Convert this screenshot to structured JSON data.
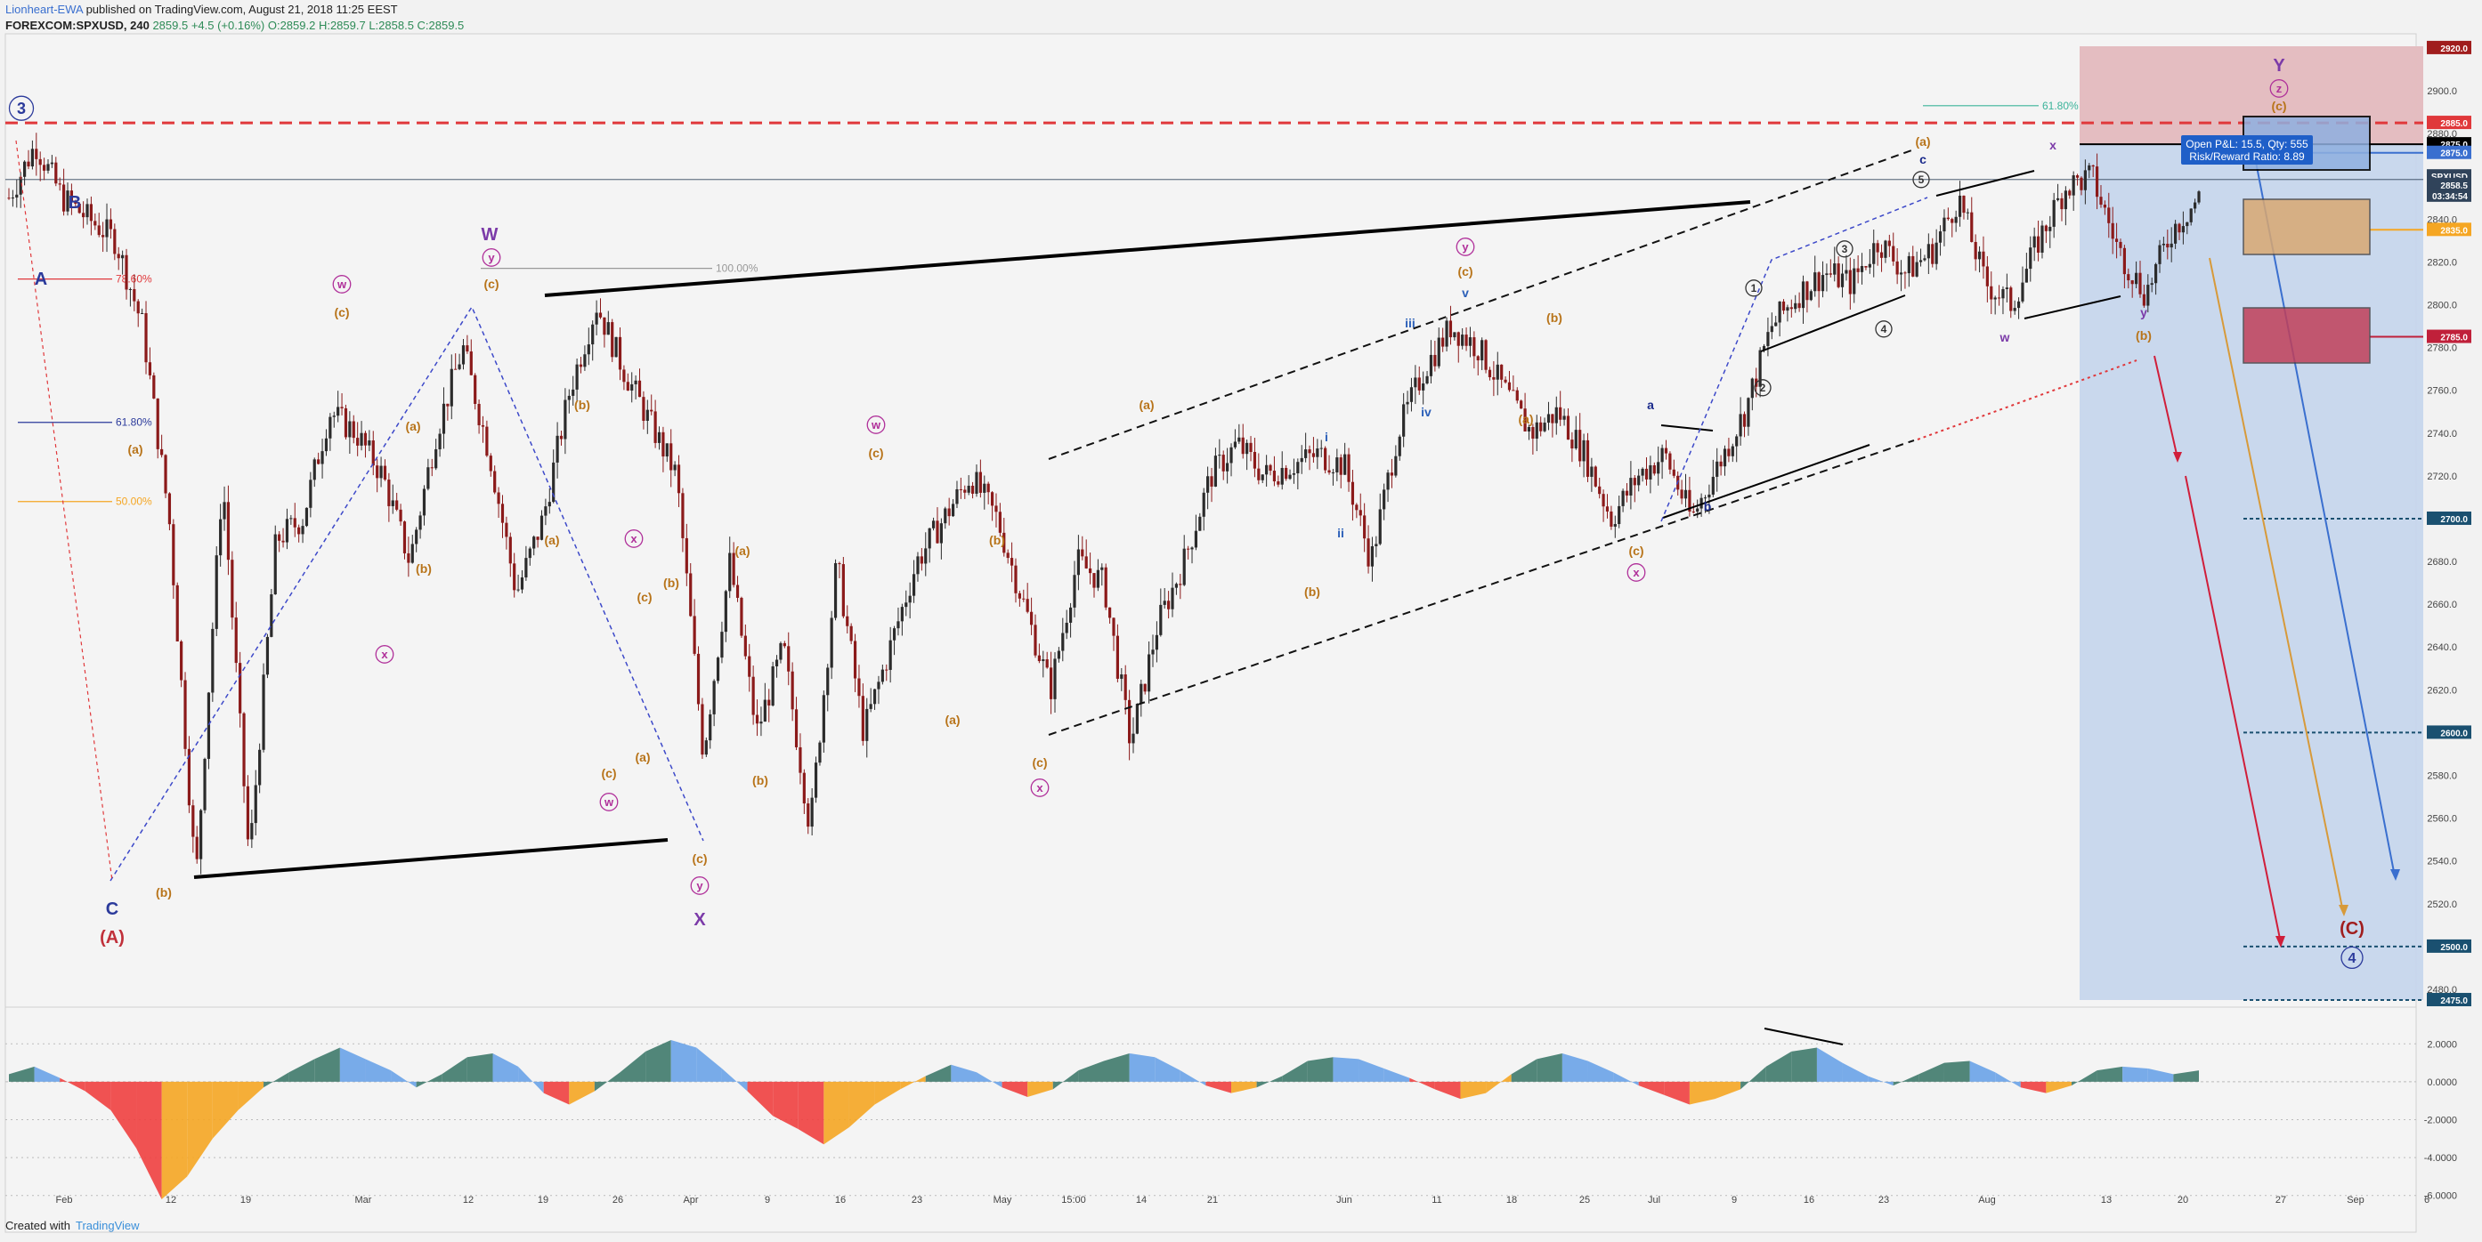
{
  "header": {
    "author": "Lionheart-EWA",
    "published": " published on TradingView.com, August 21, 2018 11:25 EEST",
    "symbol": "FOREXCOM:SPXUSD, 240",
    "change": "2859.5 +4.5 (+0.16%)",
    "ohlc": "O:2859.2 H:2859.7 L:2858.5 C:2859.5"
  },
  "footer": {
    "created": "Created with",
    "brand": "TradingView"
  },
  "colors": {
    "bull": "#2b2b2b",
    "bear": "#8b1a1a",
    "blue_wave": "#2b3a9b",
    "purple_wave": "#7b3aa8",
    "orange_wave": "#b8741a",
    "magenta_wave": "#b0309a",
    "red_level": "#e0383b",
    "target_box": "#c4d5ec",
    "osc_pos": "#3f7a6c",
    "osc_pos_light": "#6aa3e8",
    "osc_neg": "#f04040",
    "osc_neg_light": "#f5a623"
  },
  "chart_data": {
    "type": "candlestick",
    "title": "",
    "xlabel": "",
    "ylabel": "",
    "ylim": [
      2460,
      2940
    ],
    "x_ticks": [
      "Feb",
      "12",
      "19",
      "Mar",
      "12",
      "19",
      "26",
      "Apr",
      "9",
      "16",
      "23",
      "May",
      "15:00",
      "14",
      "21",
      "Jun",
      "11",
      "18",
      "25",
      "Jul",
      "9",
      "16",
      "23",
      "Aug",
      "13",
      "20",
      "27",
      "Sep",
      "6"
    ],
    "y_ticks": [
      "2900.0",
      "2880.0",
      "2860.0",
      "2840.0",
      "2820.0",
      "2800.0",
      "2780.0",
      "2760.0",
      "2740.0",
      "2720.0",
      "2700.0",
      "2680.0",
      "2660.0",
      "2640.0",
      "2620.0",
      "2600.0",
      "2580.0",
      "2560.0",
      "2540.0",
      "2520.0",
      "2500.0",
      "2480.0"
    ],
    "price_path": [
      [
        0,
        2850
      ],
      [
        1,
        2875
      ],
      [
        2,
        2850
      ],
      [
        3,
        2840
      ],
      [
        4,
        2830
      ],
      [
        5,
        2790
      ],
      [
        6,
        2700
      ],
      [
        7,
        2530
      ],
      [
        8,
        2720
      ],
      [
        9,
        2540
      ],
      [
        10,
        2690
      ],
      [
        11,
        2700
      ],
      [
        12,
        2750
      ],
      [
        13,
        2740
      ],
      [
        14,
        2720
      ],
      [
        15,
        2680
      ],
      [
        16,
        2740
      ],
      [
        17,
        2780
      ],
      [
        18,
        2730
      ],
      [
        19,
        2665
      ],
      [
        20,
        2700
      ],
      [
        21,
        2760
      ],
      [
        22,
        2800
      ],
      [
        23,
        2770
      ],
      [
        24,
        2745
      ],
      [
        25,
        2720
      ],
      [
        26,
        2590
      ],
      [
        27,
        2680
      ],
      [
        28,
        2600
      ],
      [
        29,
        2640
      ],
      [
        30,
        2555
      ],
      [
        31,
        2680
      ],
      [
        32,
        2600
      ],
      [
        33,
        2640
      ],
      [
        34,
        2680
      ],
      [
        35,
        2700
      ],
      [
        36,
        2720
      ],
      [
        37,
        2700
      ],
      [
        38,
        2660
      ],
      [
        39,
        2620
      ],
      [
        40,
        2680
      ],
      [
        41,
        2670
      ],
      [
        42,
        2595
      ],
      [
        43,
        2650
      ],
      [
        44,
        2680
      ],
      [
        45,
        2720
      ],
      [
        46,
        2735
      ],
      [
        47,
        2720
      ],
      [
        48,
        2725
      ],
      [
        49,
        2730
      ],
      [
        50,
        2725
      ],
      [
        51,
        2680
      ],
      [
        52,
        2740
      ],
      [
        53,
        2770
      ],
      [
        54,
        2790
      ],
      [
        55,
        2780
      ],
      [
        56,
        2760
      ],
      [
        57,
        2740
      ],
      [
        58,
        2750
      ],
      [
        59,
        2730
      ],
      [
        60,
        2700
      ],
      [
        61,
        2720
      ],
      [
        62,
        2730
      ],
      [
        63,
        2700
      ],
      [
        64,
        2725
      ],
      [
        65,
        2750
      ],
      [
        66,
        2790
      ],
      [
        67,
        2805
      ],
      [
        68,
        2815
      ],
      [
        69,
        2810
      ],
      [
        70,
        2830
      ],
      [
        71,
        2815
      ],
      [
        72,
        2825
      ],
      [
        73,
        2850
      ],
      [
        74,
        2810
      ],
      [
        75,
        2800
      ],
      [
        76,
        2830
      ],
      [
        77,
        2855
      ],
      [
        78,
        2860
      ],
      [
        79,
        2825
      ],
      [
        80,
        2805
      ],
      [
        81,
        2835
      ],
      [
        82,
        2850
      ]
    ],
    "price_levels": [
      {
        "label": "2920.0",
        "value": 2920,
        "bg": "#a01d1d"
      },
      {
        "label": "2885.0",
        "value": 2885,
        "bg": "#e0383b"
      },
      {
        "label": "2875.0",
        "value": 2875,
        "bg": "#000000"
      },
      {
        "label": "2875.0",
        "value": 2871,
        "bg": "#3a6fcf"
      },
      {
        "label": "SPXUSD",
        "value": 2860,
        "bg": "#30435a"
      },
      {
        "label": "2858.5",
        "value": 2856,
        "bg": "#30435a"
      },
      {
        "label": "03:34:54",
        "value": 2851,
        "bg": "#30435a"
      },
      {
        "label": "2835.0",
        "value": 2835,
        "bg": "#f5a623"
      },
      {
        "label": "2785.0",
        "value": 2785,
        "bg": "#c0203a"
      },
      {
        "label": "2700.0",
        "value": 2700,
        "bg": "#1a5070"
      },
      {
        "label": "2600.0",
        "value": 2600,
        "bg": "#1a5070"
      },
      {
        "label": "2500.0",
        "value": 2500,
        "bg": "#1a5070"
      },
      {
        "label": "2475.0",
        "value": 2475,
        "bg": "#1a5070"
      }
    ],
    "fib_levels": [
      {
        "label": "78.60%",
        "value": 2812,
        "color": "#e0383b"
      },
      {
        "label": "61.80%",
        "value": 2745,
        "color": "#2b3a9b"
      },
      {
        "label": "50.00%",
        "value": 2708,
        "color": "#f5a623"
      },
      {
        "label": "100.00%",
        "value": 2817,
        "color": "#999999"
      },
      {
        "label": "61.80%",
        "value": 2893,
        "color": "#3bb39a"
      }
    ],
    "position_box": {
      "text1": "Open P&L: 15.5, Qty: 555",
      "text2": "Risk/Reward Ratio: 8.89"
    },
    "osc_ticks": [
      "2.0000",
      "0.0000",
      "-2.0000",
      "-4.0000",
      "-6.0000"
    ],
    "osc_ylim": [
      -7,
      3
    ],
    "oscillator": [
      0.4,
      0.8,
      0.2,
      -0.5,
      -1.5,
      -3.5,
      -6.2,
      -5,
      -3,
      -1.5,
      -0.3,
      0.5,
      1.2,
      1.8,
      1.2,
      0.6,
      -0.3,
      0.4,
      1.3,
      1.5,
      0.8,
      -0.6,
      -1.2,
      -0.5,
      0.5,
      1.6,
      2.2,
      1.8,
      0.7,
      -0.5,
      -1.8,
      -2.5,
      -3.3,
      -2.4,
      -1.2,
      -0.4,
      0.3,
      0.9,
      0.5,
      -0.3,
      -0.8,
      -0.4,
      0.6,
      1.1,
      1.5,
      1.3,
      0.6,
      -0.2,
      -0.6,
      -0.3,
      0.3,
      1.1,
      1.3,
      1.2,
      0.7,
      0.2,
      -0.4,
      -0.9,
      -0.6,
      0.4,
      1.2,
      1.5,
      1.1,
      0.5,
      -0.2,
      -0.7,
      -1.2,
      -0.9,
      -0.4,
      0.8,
      1.6,
      1.8,
      1.0,
      0.3,
      -0.2,
      0.4,
      1.0,
      1.1,
      0.5,
      -0.3,
      -0.6,
      -0.2,
      0.6,
      0.8,
      0.7,
      0.4,
      0.6
    ]
  }
}
